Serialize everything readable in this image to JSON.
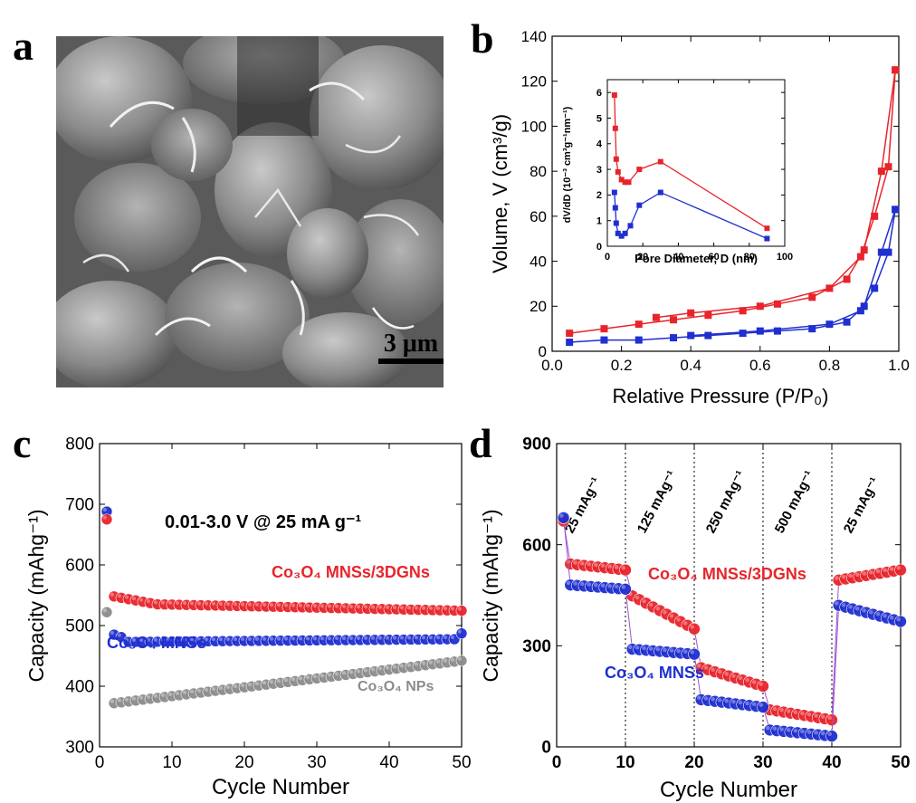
{
  "panel_labels": [
    "a",
    "b",
    "c",
    "d"
  ],
  "scale_bar": "3 μm",
  "colors": {
    "red": "#e8242b",
    "blue": "#1f2fd0",
    "gray": "#8c8c8c",
    "purple": "#a050d0"
  },
  "chart_data": [
    {
      "panel": "b",
      "type": "line",
      "xlabel": "Relative Pressure (P/P₀)",
      "ylabel": "Volume, V (cm³/g)",
      "xlim": [
        0.0,
        1.0
      ],
      "ylim": [
        0,
        140
      ],
      "xticks": [
        "0.0",
        "0.2",
        "0.4",
        "0.6",
        "0.8",
        "1.0"
      ],
      "yticks": [
        "0",
        "20",
        "40",
        "60",
        "80",
        "100",
        "120",
        "140"
      ],
      "series": [
        {
          "color": "#e8242b",
          "x": [
            0.05,
            0.15,
            0.25,
            0.35,
            0.45,
            0.55,
            0.65,
            0.75,
            0.85,
            0.9,
            0.95,
            0.99
          ],
          "y": [
            8,
            10,
            12,
            14,
            16,
            18,
            21,
            24,
            32,
            45,
            80,
            125
          ]
        },
        {
          "color": "#e8242b",
          "x": [
            0.99,
            0.97,
            0.93,
            0.89,
            0.8,
            0.6,
            0.4,
            0.3
          ],
          "y": [
            125,
            82,
            60,
            42,
            28,
            20,
            17,
            15
          ]
        },
        {
          "color": "#1f2fd0",
          "x": [
            0.05,
            0.15,
            0.25,
            0.35,
            0.45,
            0.55,
            0.65,
            0.75,
            0.85,
            0.9,
            0.95,
            0.99
          ],
          "y": [
            4,
            5,
            5,
            6,
            7,
            8,
            9,
            10,
            13,
            20,
            44,
            63
          ]
        },
        {
          "color": "#1f2fd0",
          "x": [
            0.99,
            0.97,
            0.93,
            0.89,
            0.8,
            0.6,
            0.4
          ],
          "y": [
            63,
            44,
            28,
            18,
            12,
            9,
            7
          ]
        }
      ],
      "inset": {
        "xlabel": "Pore Diameter, D (nm)",
        "ylabel": "dV/dD (10⁻³ cm³g⁻¹nm⁻¹)",
        "xlim": [
          0,
          100
        ],
        "ylim": [
          0,
          6.5
        ],
        "xticks": [
          "0",
          "20",
          "40",
          "60",
          "80",
          "100"
        ],
        "yticks": [
          "0",
          "1",
          "2",
          "3",
          "4",
          "5",
          "6"
        ],
        "series": [
          {
            "color": "#e8242b",
            "x": [
              4,
              4.5,
              5,
              6,
              8,
              10,
              12,
              18,
              30,
              90
            ],
            "y": [
              5.9,
              4.6,
              3.4,
              2.9,
              2.6,
              2.5,
              2.5,
              3.0,
              3.3,
              0.7
            ]
          },
          {
            "color": "#1f2fd0",
            "x": [
              4,
              4.5,
              5,
              6,
              8,
              10,
              13,
              18,
              30,
              90
            ],
            "y": [
              2.1,
              1.5,
              0.9,
              0.5,
              0.4,
              0.5,
              0.8,
              1.6,
              2.1,
              0.3
            ]
          }
        ]
      }
    },
    {
      "panel": "c",
      "type": "scatter",
      "xlabel": "Cycle Number",
      "ylabel": "Capacity (mAhg⁻¹)",
      "xlim": [
        0,
        50
      ],
      "ylim": [
        300,
        800
      ],
      "xticks": [
        "0",
        "10",
        "20",
        "30",
        "40",
        "50"
      ],
      "yticks": [
        "300",
        "400",
        "500",
        "600",
        "700",
        "800"
      ],
      "annotation": "0.01-3.0 V @ 25 mA g⁻¹",
      "series": [
        {
          "name": "Co₃O₄ MNSs/3DGNs",
          "color": "#e8242b",
          "first": [
            675
          ],
          "start": 548,
          "end": 525
        },
        {
          "name": "Co₃O₄ MNSs",
          "color": "#1f2fd0",
          "first": [
            688
          ],
          "start": 485,
          "end": 487
        },
        {
          "name": "Co₃O₄ NPs",
          "color": "#8c8c8c",
          "first": [
            522
          ],
          "start": 372,
          "end": 442
        }
      ]
    },
    {
      "panel": "d",
      "type": "scatter",
      "xlabel": "Cycle Number",
      "ylabel": "Capacity (mAhg⁻¹)",
      "xlim": [
        0,
        50
      ],
      "ylim": [
        0,
        900
      ],
      "xticks": [
        "0",
        "10",
        "20",
        "30",
        "40",
        "50"
      ],
      "yticks": [
        "0",
        "300",
        "600",
        "900"
      ],
      "rate_labels": [
        "25 mAg⁻¹",
        "125 mAg⁻¹",
        "250 mAg⁻¹",
        "500 mAg⁻¹",
        "25 mAg⁻¹"
      ],
      "dividers": [
        10,
        20,
        30,
        40
      ],
      "series": [
        {
          "name": "Co₃O₄ MNSs/3DGNs",
          "color": "#e8242b",
          "first": 670,
          "segments": [
            [
              545,
              525
            ],
            [
              448,
              350
            ],
            [
              235,
              180
            ],
            [
              110,
              80
            ],
            [
              495,
              525
            ]
          ]
        },
        {
          "name": "Co₃O₄ MNSs",
          "color": "#1f2fd0",
          "first": 680,
          "segments": [
            [
              482,
              468
            ],
            [
              290,
              275
            ],
            [
              140,
              118
            ],
            [
              50,
              32
            ],
            [
              420,
              372
            ]
          ]
        }
      ]
    }
  ]
}
